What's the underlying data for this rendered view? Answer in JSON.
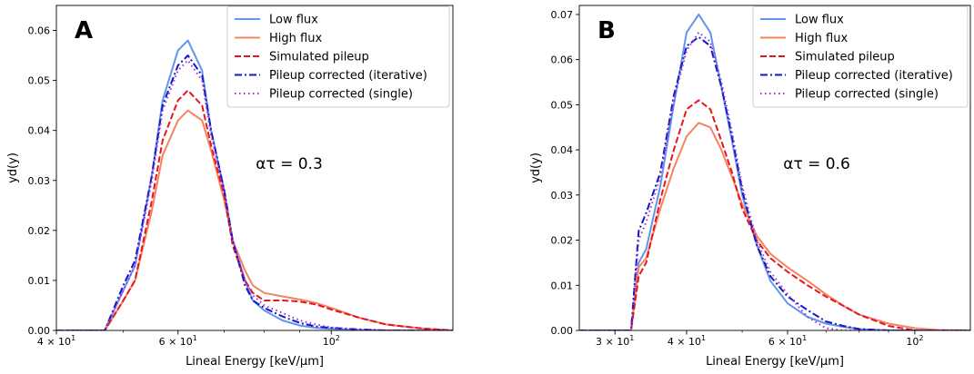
{
  "legend_entries": [
    {
      "label": "Low flux",
      "color": "#6495ED",
      "dash": "solid"
    },
    {
      "label": "High flux",
      "color": "#F4845F",
      "dash": "solid"
    },
    {
      "label": "Simulated pileup",
      "color": "#E8141C",
      "dash": "dashed"
    },
    {
      "label": "Pileup corrected (iterative)",
      "color": "#1414C8",
      "dash": "dashdot"
    },
    {
      "label": "Pileup corrected (single)",
      "color": "#9932CC",
      "dash": "dotted"
    }
  ],
  "chart_data": [
    {
      "type": "line",
      "panel_label": "A",
      "annotation": "ατ = 0.3",
      "xlabel": "Lineal Energy [keV/μm]",
      "ylabel": "yd(y)",
      "xscale": "log",
      "xlim": [
        40,
        150
      ],
      "ylim": [
        0,
        0.065
      ],
      "xticks": [
        {
          "value": 40,
          "base": "4 × 10",
          "exp": "1"
        },
        {
          "value": 60,
          "base": "6 × 10",
          "exp": "1"
        },
        {
          "value": 100,
          "base": "10",
          "exp": "2"
        }
      ],
      "yticks": [
        "0.00",
        "0.01",
        "0.02",
        "0.03",
        "0.04",
        "0.05",
        "0.06"
      ],
      "grid": false,
      "legend_position": "top-right",
      "x": [
        40,
        45,
        47,
        50,
        52,
        55,
        57,
        60,
        62,
        65,
        67,
        70,
        72,
        75,
        77,
        80,
        85,
        90,
        95,
        100,
        110,
        120,
        135,
        150
      ],
      "series": [
        {
          "name": "Low flux",
          "values": [
            0,
            0,
            0,
            0.008,
            0.013,
            0.031,
            0.046,
            0.056,
            0.058,
            0.052,
            0.04,
            0.028,
            0.018,
            0.01,
            0.006,
            0.004,
            0.002,
            0.001,
            0.0005,
            0.0003,
            0.0001,
            0,
            0,
            0
          ]
        },
        {
          "name": "High flux",
          "values": [
            0,
            0,
            0,
            0.006,
            0.01,
            0.024,
            0.035,
            0.042,
            0.044,
            0.042,
            0.036,
            0.026,
            0.018,
            0.012,
            0.009,
            0.0075,
            0.0068,
            0.0062,
            0.0055,
            0.0045,
            0.0025,
            0.0012,
            0.0004,
            0
          ]
        },
        {
          "name": "Simulated pileup",
          "values": [
            0,
            0,
            0,
            0.006,
            0.01,
            0.026,
            0.038,
            0.046,
            0.048,
            0.045,
            0.037,
            0.027,
            0.017,
            0.01,
            0.0075,
            0.006,
            0.006,
            0.0058,
            0.0052,
            0.0042,
            0.0025,
            0.0012,
            0.0004,
            0
          ]
        },
        {
          "name": "Pileup corrected (iterative)",
          "values": [
            0,
            0,
            0,
            0.009,
            0.014,
            0.031,
            0.045,
            0.053,
            0.055,
            0.051,
            0.04,
            0.028,
            0.018,
            0.009,
            0.006,
            0.0045,
            0.0028,
            0.0015,
            0.0008,
            0.0005,
            0.0002,
            0,
            0,
            0
          ]
        },
        {
          "name": "Pileup corrected (single)",
          "values": [
            0,
            0,
            0,
            0.008,
            0.013,
            0.03,
            0.044,
            0.052,
            0.054,
            0.05,
            0.039,
            0.028,
            0.018,
            0.01,
            0.007,
            0.005,
            0.0035,
            0.002,
            0.0012,
            0.0006,
            0.0002,
            0,
            0,
            0
          ]
        }
      ]
    },
    {
      "type": "line",
      "panel_label": "B",
      "annotation": "ατ = 0.6",
      "xlabel": "Lineal Energy [keV/μm]",
      "ylabel": "yd(y)",
      "xscale": "log",
      "xlim": [
        26,
        125
      ],
      "ylim": [
        0,
        0.072
      ],
      "xticks": [
        {
          "value": 30,
          "base": "3 × 10",
          "exp": "1"
        },
        {
          "value": 40,
          "base": "4 × 10",
          "exp": "1"
        },
        {
          "value": 60,
          "base": "6 × 10",
          "exp": "1"
        },
        {
          "value": 100,
          "base": "10",
          "exp": "2"
        }
      ],
      "yticks": [
        "0.00",
        "0.01",
        "0.02",
        "0.03",
        "0.04",
        "0.05",
        "0.06",
        "0.07"
      ],
      "grid": false,
      "legend_position": "top-right",
      "x": [
        26,
        30,
        32,
        33,
        34,
        36,
        38,
        40,
        42,
        44,
        46,
        48,
        50,
        53,
        56,
        60,
        65,
        70,
        75,
        80,
        90,
        100,
        110,
        125
      ],
      "series": [
        {
          "name": "Low flux",
          "values": [
            0,
            0,
            0,
            0.015,
            0.018,
            0.032,
            0.05,
            0.066,
            0.07,
            0.066,
            0.054,
            0.042,
            0.03,
            0.019,
            0.011,
            0.006,
            0.003,
            0.0015,
            0.0008,
            0.0003,
            0,
            0,
            0,
            0
          ]
        },
        {
          "name": "High flux",
          "values": [
            0,
            0,
            0,
            0.014,
            0.016,
            0.027,
            0.036,
            0.043,
            0.046,
            0.045,
            0.04,
            0.034,
            0.028,
            0.021,
            0.017,
            0.014,
            0.011,
            0.008,
            0.0055,
            0.0035,
            0.0015,
            0.0005,
            0.0001,
            0
          ]
        },
        {
          "name": "Simulated pileup",
          "values": [
            0,
            0,
            0,
            0.012,
            0.015,
            0.029,
            0.04,
            0.049,
            0.051,
            0.049,
            0.042,
            0.035,
            0.027,
            0.02,
            0.016,
            0.013,
            0.01,
            0.0075,
            0.0055,
            0.0035,
            0.001,
            0,
            0,
            0
          ]
        },
        {
          "name": "Pileup corrected (iterative)",
          "values": [
            0,
            0,
            0,
            0.022,
            0.026,
            0.035,
            0.052,
            0.063,
            0.065,
            0.063,
            0.054,
            0.043,
            0.031,
            0.019,
            0.012,
            0.0075,
            0.0045,
            0.002,
            0.001,
            0.0003,
            0,
            0,
            0,
            0
          ]
        },
        {
          "name": "Pileup corrected (single)",
          "values": [
            0,
            0,
            0,
            0.02,
            0.024,
            0.034,
            0.051,
            0.062,
            0.066,
            0.064,
            0.055,
            0.044,
            0.032,
            0.02,
            0.013,
            0.008,
            0.003,
            0.0005,
            0,
            0,
            0,
            0,
            0,
            0
          ]
        }
      ]
    }
  ]
}
